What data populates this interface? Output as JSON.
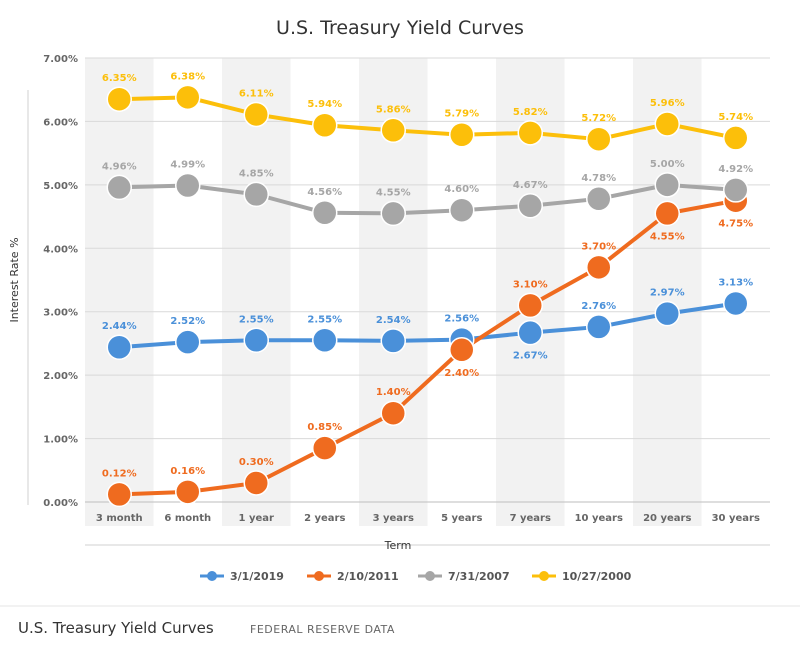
{
  "chart_data": {
    "type": "line",
    "title": "U.S. Treasury Yield Curves",
    "xlabel": "Term",
    "ylabel": "Interest Rate %",
    "ylim": [
      0,
      7
    ],
    "y_ticks": [
      "0.00%",
      "1.00%",
      "2.00%",
      "3.00%",
      "4.00%",
      "5.00%",
      "6.00%",
      "7.00%"
    ],
    "categories": [
      "3 month",
      "6 month",
      "1 year",
      "2 years",
      "3 years",
      "5 years",
      "7 years",
      "10 years",
      "20 years",
      "30 years"
    ],
    "grid": true,
    "legend_position": "bottom",
    "series": [
      {
        "name": "3/1/2019",
        "color": "#4a90d9",
        "values": [
          2.44,
          2.52,
          2.55,
          2.55,
          2.54,
          2.56,
          2.67,
          2.76,
          2.97,
          3.13
        ],
        "labels": [
          "2.44%",
          "2.52%",
          "2.55%",
          "2.55%",
          "2.54%",
          "2.56%",
          "2.67%",
          "2.76%",
          "2.97%",
          "3.13%"
        ],
        "label_pos": [
          "above",
          "above",
          "above",
          "above",
          "above",
          "above",
          "below",
          "above",
          "above",
          "above"
        ]
      },
      {
        "name": "2/10/2011",
        "color": "#ef6b1f",
        "values": [
          0.12,
          0.16,
          0.3,
          0.85,
          1.4,
          2.4,
          3.1,
          3.7,
          4.55,
          4.75
        ],
        "labels": [
          "0.12%",
          "0.16%",
          "0.30%",
          "0.85%",
          "1.40%",
          "2.40%",
          "3.10%",
          "3.70%",
          "4.55%",
          "4.75%"
        ],
        "label_pos": [
          "above",
          "above",
          "above",
          "above",
          "above",
          "below",
          "above",
          "above",
          "below",
          "below"
        ]
      },
      {
        "name": "7/31/2007",
        "color": "#a6a6a6",
        "values": [
          4.96,
          4.99,
          4.85,
          4.56,
          4.55,
          4.6,
          4.67,
          4.78,
          5.0,
          4.92
        ],
        "labels": [
          "4.96%",
          "4.99%",
          "4.85%",
          "4.56%",
          "4.55%",
          "4.60%",
          "4.67%",
          "4.78%",
          "5.00%",
          "4.92%"
        ],
        "label_pos": [
          "above",
          "above",
          "above",
          "above",
          "above",
          "above",
          "above",
          "above",
          "above",
          "above"
        ]
      },
      {
        "name": "10/27/2000",
        "color": "#fcbf0a",
        "values": [
          6.35,
          6.38,
          6.11,
          5.94,
          5.86,
          5.79,
          5.82,
          5.72,
          5.96,
          5.74
        ],
        "labels": [
          "6.35%",
          "6.38%",
          "6.11%",
          "5.94%",
          "5.86%",
          "5.79%",
          "5.82%",
          "5.72%",
          "5.96%",
          "5.74%"
        ],
        "label_pos": [
          "above",
          "above",
          "above",
          "above",
          "above",
          "above",
          "above",
          "above",
          "above",
          "above"
        ]
      }
    ]
  },
  "footer": {
    "title": "U.S. Treasury Yield Curves",
    "source": "FEDERAL RESERVE DATA"
  }
}
